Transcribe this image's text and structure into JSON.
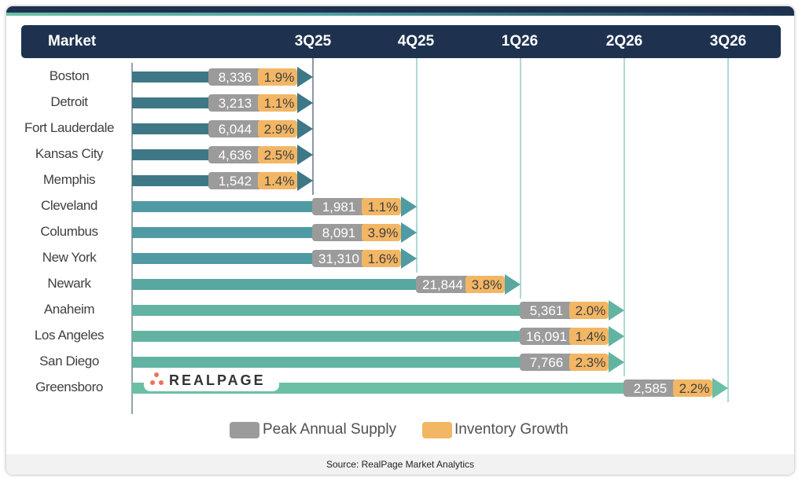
{
  "header": {
    "market_label": "Market"
  },
  "chart_data": {
    "type": "bar",
    "title": "",
    "xlabel": "",
    "ylabel": "Market",
    "x_ticks": [
      "3Q25",
      "4Q25",
      "1Q26",
      "2Q26",
      "3Q26"
    ],
    "categories": [
      "Boston",
      "Detroit",
      "Fort Lauderdale",
      "Kansas City",
      "Memphis",
      "Cleveland",
      "Columbus",
      "New York",
      "Newark",
      "Anaheim",
      "Los Angeles",
      "San Diego",
      "Greensboro"
    ],
    "peak_quarter": [
      "3Q25",
      "3Q25",
      "3Q25",
      "3Q25",
      "3Q25",
      "4Q25",
      "4Q25",
      "4Q25",
      "1Q26",
      "2Q26",
      "2Q26",
      "2Q26",
      "3Q26"
    ],
    "series": [
      {
        "name": "Peak Annual Supply",
        "labels": [
          "8,336",
          "3,213",
          "6,044",
          "4,636",
          "1,542",
          "1,981",
          "8,091",
          "31,310",
          "21,844",
          "5,361",
          "16,091",
          "7,766",
          "2,585"
        ],
        "values": [
          8336,
          3213,
          6044,
          4636,
          1542,
          1981,
          8091,
          31310,
          21844,
          5361,
          16091,
          7766,
          2585
        ],
        "color": "#9b9b9b"
      },
      {
        "name": "Inventory Growth",
        "labels": [
          "1.9%",
          "1.1%",
          "2.9%",
          "2.5%",
          "1.4%",
          "1.1%",
          "3.9%",
          "1.6%",
          "3.8%",
          "2.0%",
          "1.4%",
          "2.3%",
          "2.2%"
        ],
        "values": [
          1.9,
          1.1,
          2.9,
          2.5,
          1.4,
          1.1,
          3.9,
          1.6,
          3.8,
          2.0,
          1.4,
          2.3,
          2.2
        ],
        "color": "#f2b664"
      }
    ],
    "bar_colors": [
      "#3e7886",
      "#3e7886",
      "#3e7886",
      "#3e7886",
      "#3e7886",
      "#4f9aa3",
      "#4f9aa3",
      "#4f9aa3",
      "#58a8a1",
      "#62b3a2",
      "#62b3a2",
      "#62b3a2",
      "#6abfa5"
    ],
    "legend": [
      "Peak Annual Supply",
      "Inventory Growth"
    ],
    "legend_position": "bottom"
  },
  "logo": {
    "text": "REALPAGE"
  },
  "source": "Source: RealPage Market Analytics"
}
